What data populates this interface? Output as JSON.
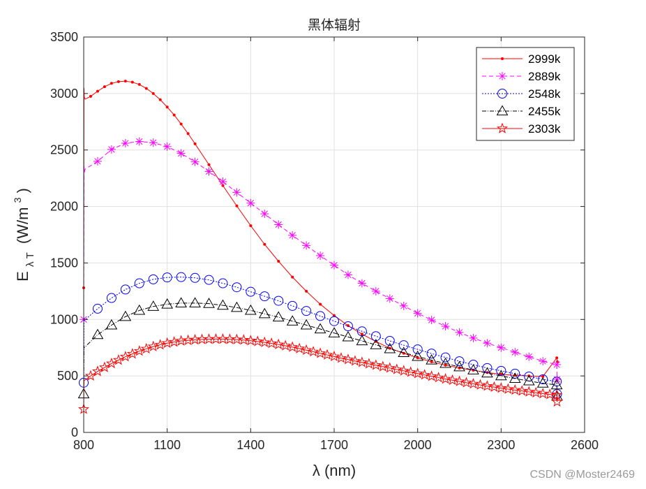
{
  "chart_data": {
    "type": "line",
    "title": "黑体辐射",
    "xlabel": "λ (nm)",
    "ylabel_main": "E",
    "ylabel_sub": "λ T",
    "ylabel_unit": "(W/m",
    "ylabel_sup": "3",
    "ylabel_close": ")",
    "xlim": [
      800,
      2600
    ],
    "ylim": [
      0,
      3500
    ],
    "xticks": [
      800,
      1100,
      1400,
      1700,
      2000,
      2300,
      2600
    ],
    "yticks": [
      0,
      500,
      1000,
      1500,
      2000,
      2500,
      3000,
      3500
    ],
    "grid": true,
    "legend_position": "top-right",
    "series": [
      {
        "name": "2999k",
        "color": "#ff0000",
        "dash": "none",
        "marker": "dot",
        "marker_step": 25,
        "x": [
          800,
          801,
          802,
          805,
          825,
          850,
          875,
          900,
          925,
          950,
          975,
          1000,
          1025,
          1050,
          1075,
          1100,
          1125,
          1150,
          1175,
          1200,
          1250,
          1300,
          1350,
          1400,
          1450,
          1500,
          1550,
          1600,
          1650,
          1700,
          1750,
          1800,
          1850,
          1900,
          1950,
          2000,
          2050,
          2100,
          2150,
          2200,
          2250,
          2300,
          2350,
          2400,
          2450,
          2500,
          2501,
          2502
        ],
        "y": [
          1280,
          3050,
          2970,
          2950,
          2975,
          3020,
          3060,
          3090,
          3105,
          3110,
          3100,
          3080,
          3045,
          3000,
          2945,
          2880,
          2810,
          2730,
          2645,
          2555,
          2370,
          2185,
          2005,
          1830,
          1665,
          1515,
          1375,
          1250,
          1135,
          1035,
          945,
          870,
          805,
          745,
          700,
          660,
          625,
          595,
          570,
          550,
          530,
          515,
          505,
          500,
          495,
          660,
          640,
          625
        ]
      },
      {
        "name": "2889k",
        "color": "#ff00ff",
        "dash": "6 4",
        "marker": "asterisk",
        "marker_step": 50,
        "x": [
          800,
          801,
          802,
          805,
          850,
          900,
          950,
          1000,
          1050,
          1100,
          1150,
          1200,
          1250,
          1300,
          1350,
          1400,
          1450,
          1500,
          1550,
          1600,
          1650,
          1700,
          1750,
          1800,
          1850,
          1900,
          1950,
          2000,
          2050,
          2100,
          2150,
          2200,
          2250,
          2300,
          2350,
          2400,
          2450,
          2500,
          2501
        ],
        "y": [
          1000,
          2360,
          2300,
          2330,
          2400,
          2505,
          2560,
          2575,
          2565,
          2530,
          2470,
          2395,
          2310,
          2220,
          2125,
          2030,
          1935,
          1840,
          1745,
          1655,
          1565,
          1480,
          1395,
          1320,
          1250,
          1185,
          1120,
          1055,
          995,
          940,
          885,
          835,
          790,
          750,
          710,
          670,
          630,
          600,
          470
        ]
      },
      {
        "name": "2548k",
        "color": "#0000ff",
        "dash": "2 2",
        "marker": "circle",
        "marker_step": 50,
        "x": [
          800,
          801,
          802,
          850,
          900,
          950,
          1000,
          1050,
          1100,
          1150,
          1200,
          1250,
          1300,
          1350,
          1400,
          1450,
          1500,
          1550,
          1600,
          1650,
          1700,
          1750,
          1800,
          1850,
          1900,
          1950,
          2000,
          2050,
          2100,
          2150,
          2200,
          2250,
          2300,
          2350,
          2400,
          2450,
          2500,
          2501
        ],
        "y": [
          440,
          1015,
          990,
          1095,
          1190,
          1265,
          1320,
          1355,
          1372,
          1375,
          1368,
          1350,
          1320,
          1285,
          1245,
          1205,
          1165,
          1120,
          1075,
          1030,
          985,
          940,
          895,
          852,
          810,
          772,
          735,
          698,
          664,
          630,
          600,
          570,
          545,
          520,
          495,
          470,
          450,
          340
        ]
      },
      {
        "name": "2455k",
        "color": "#000000",
        "dash": "6 2 1 2",
        "marker": "triangle",
        "marker_step": 50,
        "x": [
          800,
          801,
          802,
          850,
          900,
          950,
          1000,
          1050,
          1100,
          1150,
          1200,
          1250,
          1300,
          1350,
          1400,
          1450,
          1500,
          1550,
          1600,
          1650,
          1700,
          1750,
          1800,
          1850,
          1900,
          1950,
          2000,
          2050,
          2100,
          2150,
          2200,
          2250,
          2300,
          2350,
          2400,
          2450,
          2500,
          2501
        ],
        "y": [
          340,
          765,
          750,
          865,
          950,
          1025,
          1080,
          1115,
          1135,
          1145,
          1145,
          1140,
          1125,
          1105,
          1080,
          1050,
          1020,
          985,
          950,
          915,
          880,
          845,
          810,
          775,
          740,
          706,
          672,
          640,
          610,
          580,
          552,
          525,
          500,
          477,
          455,
          435,
          420,
          320
        ]
      },
      {
        "name": "2303k",
        "color": "#ff0000",
        "dash": "none",
        "marker": "star",
        "marker_step": 25,
        "x": [
          800,
          801,
          802,
          825,
          850,
          875,
          900,
          925,
          950,
          975,
          1000,
          1025,
          1050,
          1075,
          1100,
          1125,
          1150,
          1175,
          1200,
          1225,
          1250,
          1275,
          1300,
          1325,
          1350,
          1375,
          1400,
          1425,
          1450,
          1475,
          1500,
          1525,
          1550,
          1575,
          1600,
          1625,
          1650,
          1675,
          1700,
          1725,
          1750,
          1775,
          1800,
          1825,
          1850,
          1875,
          1900,
          1925,
          1950,
          1975,
          2000,
          2025,
          2050,
          2075,
          2100,
          2125,
          2150,
          2175,
          2200,
          2225,
          2250,
          2275,
          2300,
          2325,
          2350,
          2375,
          2400,
          2425,
          2450,
          2475,
          2500,
          2501
        ],
        "y": [
          205,
          470,
          460,
          500,
          540,
          575,
          610,
          640,
          670,
          695,
          720,
          740,
          760,
          775,
          790,
          800,
          810,
          815,
          820,
          823,
          825,
          826,
          826,
          824,
          822,
          818,
          812,
          805,
          797,
          788,
          778,
          767,
          755,
          742,
          728,
          714,
          700,
          686,
          672,
          658,
          645,
          632,
          620,
          607,
          595,
          582,
          570,
          557,
          545,
          533,
          521,
          509,
          497,
          485,
          473,
          462,
          451,
          440,
          430,
          420,
          410,
          401,
          392,
          383,
          375,
          367,
          359,
          351,
          343,
          336,
          330,
          270
        ]
      }
    ]
  },
  "watermark": "CSDN @Moster2469"
}
